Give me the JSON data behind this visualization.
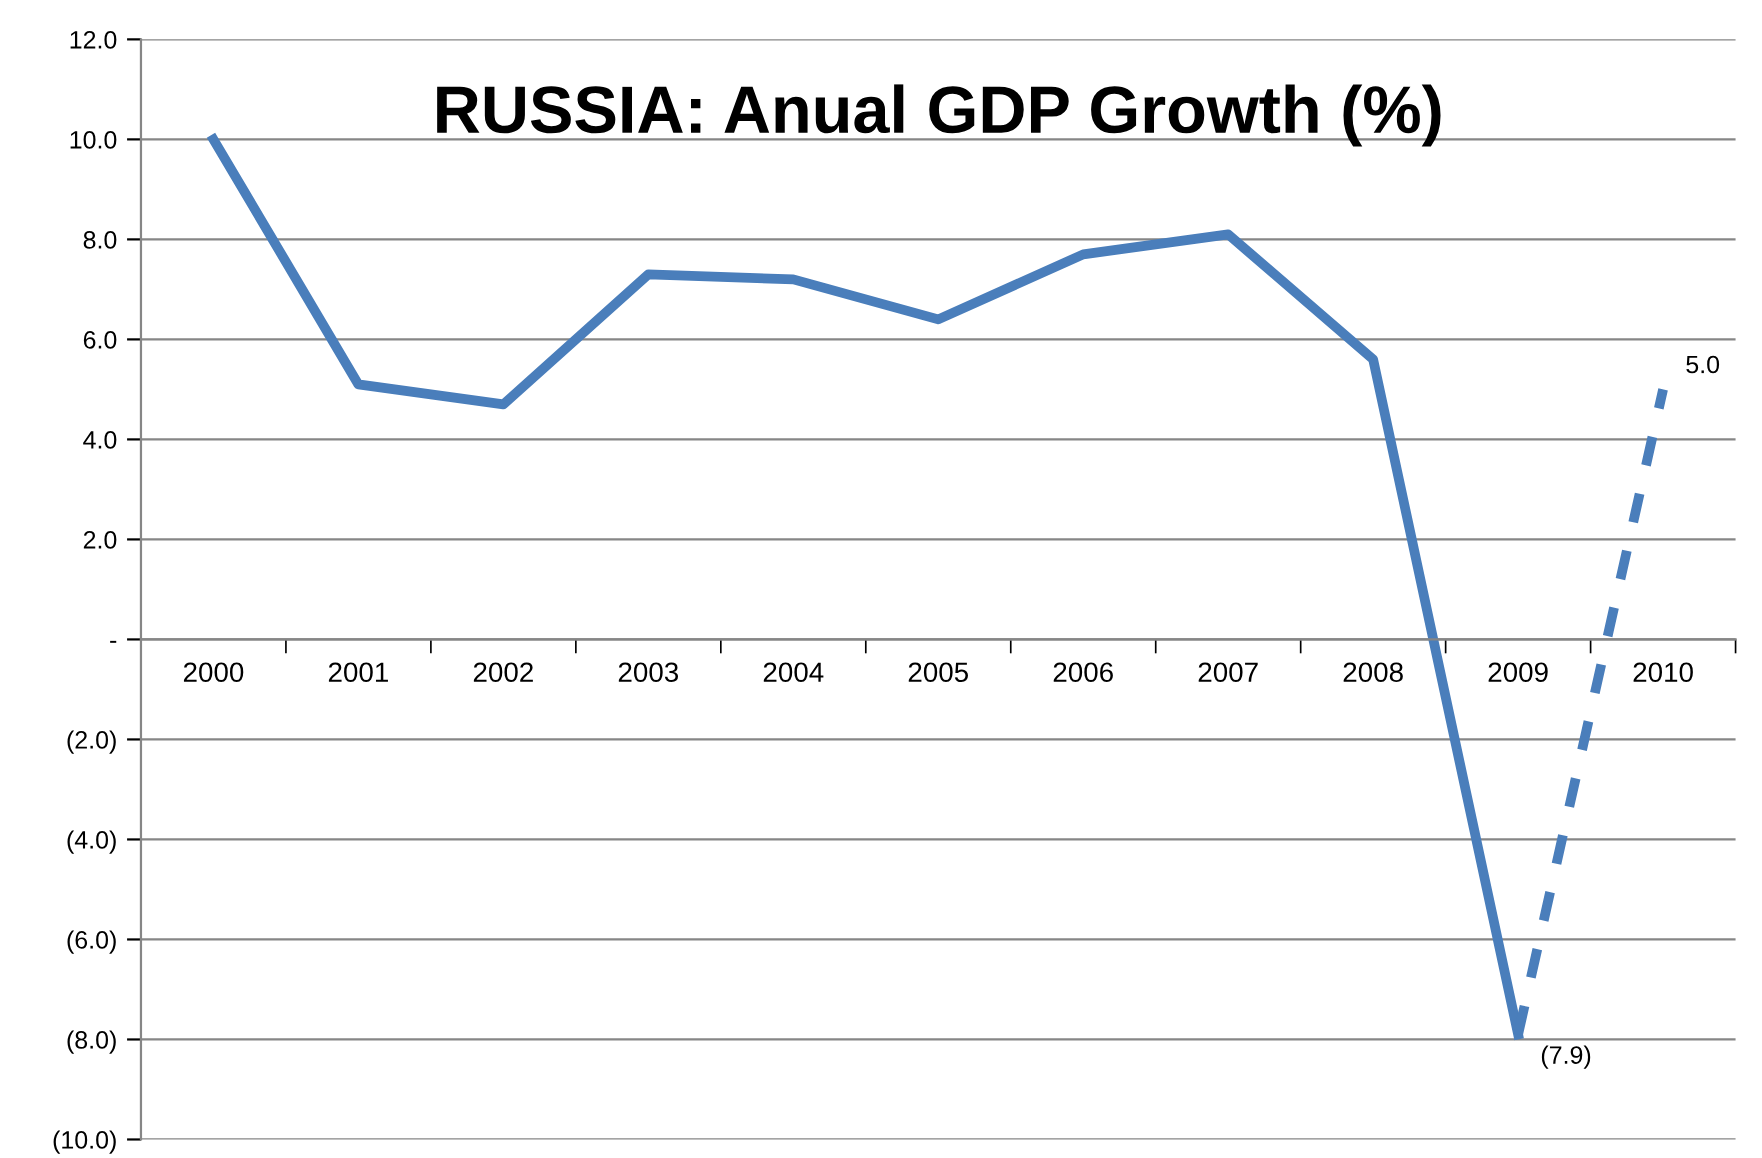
{
  "chart_data": {
    "type": "line",
    "title": "RUSSIA: Anual GDP Growth (%)",
    "categories": [
      "2000",
      "2001",
      "2002",
      "2003",
      "2004",
      "2005",
      "2006",
      "2007",
      "2008",
      "2009",
      "2010"
    ],
    "series": [
      {
        "color": "#4a7ebb",
        "line_style": "solid",
        "values": [
          10.0,
          5.1,
          4.7,
          7.3,
          7.2,
          6.4,
          7.7,
          8.1,
          5.6,
          -7.9,
          null
        ]
      },
      {
        "color": "#4a7ebb",
        "line_style": "dashed",
        "values": [
          null,
          null,
          null,
          null,
          null,
          null,
          null,
          null,
          null,
          -7.9,
          5.0
        ],
        "value_labels": [
          null,
          null,
          null,
          null,
          null,
          null,
          null,
          null,
          null,
          "(7.9)",
          "5.0"
        ]
      }
    ],
    "ylim": [
      -10,
      12
    ],
    "yticks": [
      {
        "value": -10,
        "label": "(10.0)"
      },
      {
        "value": -8,
        "label": "(8.0)"
      },
      {
        "value": -6,
        "label": "(6.0)"
      },
      {
        "value": -4,
        "label": "(4.0)"
      },
      {
        "value": -2,
        "label": "(2.0)"
      },
      {
        "value": 0,
        "label": "-"
      },
      {
        "value": 2,
        "label": "2.0"
      },
      {
        "value": 4,
        "label": "4.0"
      },
      {
        "value": 6,
        "label": "6.0"
      },
      {
        "value": 8,
        "label": "8.0"
      },
      {
        "value": 10,
        "label": "10.0"
      },
      {
        "value": 12,
        "label": "12.0"
      }
    ],
    "grid": "y",
    "legend": false,
    "marker": "none"
  }
}
